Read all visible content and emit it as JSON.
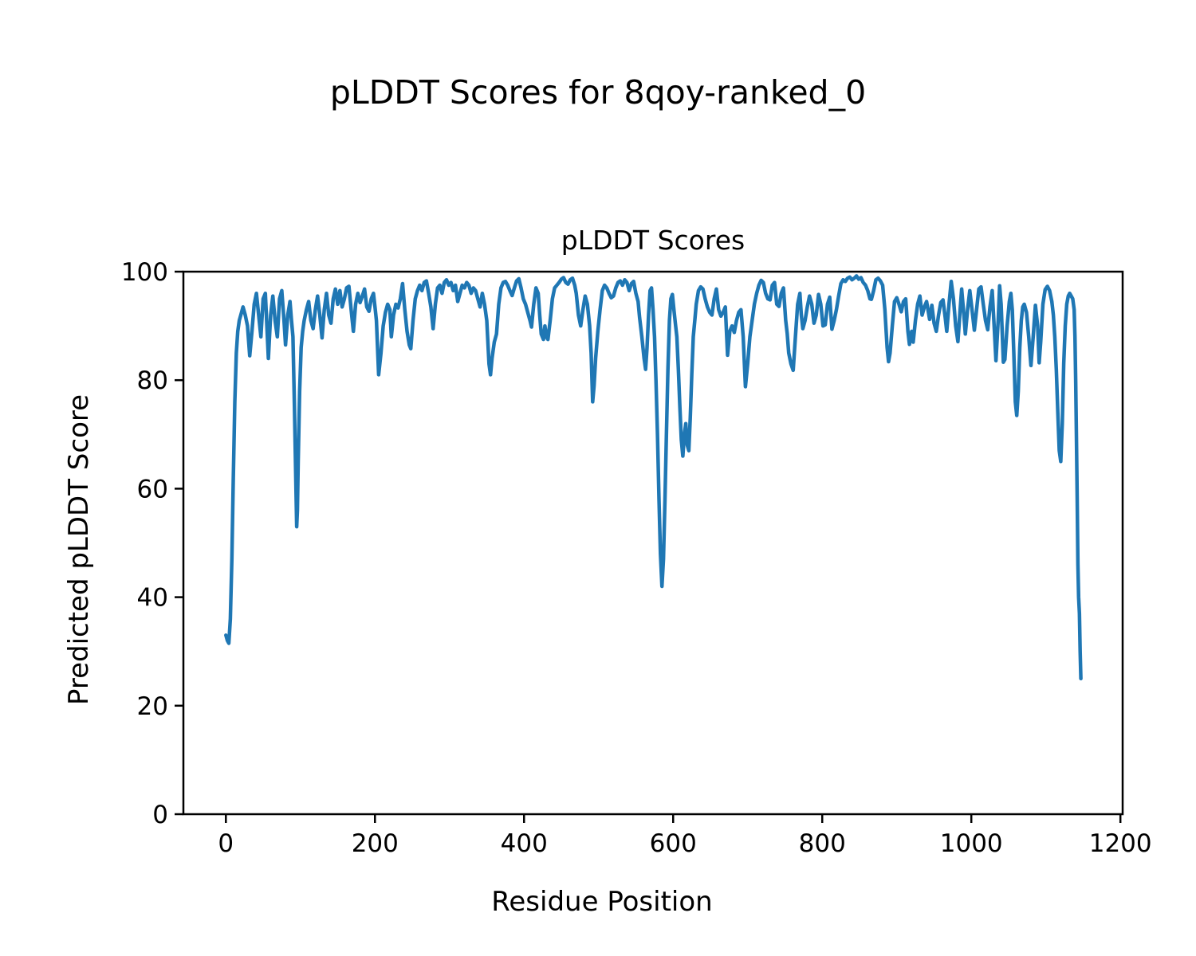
{
  "figure": {
    "suptitle": "pLDDT Scores for 8qoy-ranked_0"
  },
  "chart_data": {
    "type": "line",
    "title": "pLDDT Scores",
    "xlabel": "Residue Position",
    "ylabel": "Predicted pLDDT Score",
    "xlim": [
      -57,
      1203
    ],
    "ylim": [
      0,
      100
    ],
    "xticks": [
      0,
      200,
      400,
      600,
      800,
      1000,
      1200
    ],
    "yticks": [
      0,
      20,
      40,
      60,
      80,
      100
    ],
    "grid": false,
    "legend": "none",
    "line_color": "#1f77b4",
    "axis_color": "#000000",
    "series": [
      {
        "name": "pLDDT",
        "x": [
          0,
          2,
          4,
          6,
          8,
          10,
          12,
          14,
          16,
          18,
          20,
          23,
          26,
          29,
          32,
          35,
          38,
          41,
          44,
          47,
          50,
          53,
          55,
          57,
          60,
          63,
          66,
          69,
          72,
          75,
          78,
          80,
          83,
          86,
          88,
          90,
          92,
          94,
          95,
          96,
          97,
          99,
          101,
          103,
          105,
          108,
          111,
          114,
          117,
          120,
          123,
          126,
          129,
          132,
          135,
          138,
          141,
          144,
          147,
          150,
          153,
          156,
          159,
          162,
          165,
          168,
          171,
          174,
          177,
          180,
          183,
          186,
          189,
          192,
          195,
          198,
          200,
          202,
          205,
          208,
          211,
          214,
          217,
          220,
          222,
          225,
          228,
          231,
          234,
          237,
          240,
          243,
          246,
          248,
          251,
          254,
          257,
          260,
          263,
          266,
          269,
          272,
          275,
          278,
          281,
          284,
          287,
          290,
          293,
          296,
          299,
          302,
          305,
          308,
          311,
          314,
          317,
          320,
          323,
          326,
          329,
          332,
          335,
          338,
          341,
          344,
          347,
          350,
          353,
          355,
          357,
          360,
          363,
          366,
          369,
          372,
          375,
          378,
          381,
          384,
          387,
          390,
          393,
          396,
          399,
          402,
          405,
          408,
          410,
          413,
          416,
          419,
          421,
          423,
          426,
          428,
          430,
          432,
          435,
          438,
          441,
          444,
          447,
          450,
          453,
          456,
          459,
          462,
          465,
          468,
          470,
          473,
          476,
          479,
          482,
          485,
          488,
          490,
          492,
          494,
          496,
          499,
          502,
          505,
          508,
          511,
          514,
          517,
          520,
          523,
          526,
          529,
          532,
          535,
          538,
          541,
          544,
          547,
          550,
          553,
          555,
          558,
          561,
          563,
          565,
          567,
          569,
          571,
          573,
          575,
          577,
          579,
          581,
          583,
          585,
          587,
          589,
          591,
          593,
          595,
          597,
          599,
          601,
          603,
          605,
          607,
          609,
          611,
          613,
          615,
          617,
          619,
          621,
          623,
          625,
          627,
          629,
          631,
          634,
          637,
          640,
          643,
          646,
          649,
          652,
          655,
          658,
          661,
          664,
          667,
          670,
          673,
          676,
          679,
          682,
          685,
          688,
          691,
          694,
          697,
          700,
          703,
          706,
          709,
          712,
          715,
          718,
          721,
          724,
          727,
          730,
          733,
          736,
          739,
          742,
          745,
          748,
          751,
          753,
          755,
          758,
          761,
          764,
          767,
          770,
          772,
          774,
          777,
          780,
          783,
          786,
          789,
          792,
          795,
          798,
          801,
          804,
          807,
          810,
          813,
          816,
          819,
          822,
          825,
          828,
          831,
          834,
          837,
          840,
          843,
          846,
          849,
          852,
          855,
          858,
          861,
          864,
          866,
          869,
          872,
          875,
          878,
          881,
          884,
          887,
          889,
          891,
          894,
          897,
          900,
          903,
          906,
          909,
          912,
          915,
          917,
          920,
          922,
          925,
          928,
          931,
          934,
          937,
          940,
          944,
          947,
          950,
          953,
          956,
          959,
          962,
          965,
          967,
          970,
          973,
          976,
          979,
          982,
          985,
          987,
          990,
          992,
          995,
          998,
          1001,
          1004,
          1007,
          1010,
          1013,
          1016,
          1019,
          1022,
          1025,
          1028,
          1031,
          1033,
          1036,
          1038,
          1040,
          1043,
          1045,
          1048,
          1051,
          1053,
          1055,
          1057,
          1059,
          1061,
          1063,
          1065,
          1067,
          1069,
          1071,
          1074,
          1077,
          1080,
          1083,
          1086,
          1089,
          1091,
          1093,
          1096,
          1099,
          1102,
          1105,
          1108,
          1110,
          1112,
          1114,
          1116,
          1118,
          1120,
          1122,
          1124,
          1126,
          1128,
          1130,
          1132,
          1134,
          1136,
          1138,
          1139,
          1140,
          1141,
          1142,
          1143,
          1144,
          1145,
          1146,
          1147
        ],
        "y": [
          33,
          32,
          31.5,
          36,
          47,
          62,
          76,
          85,
          89,
          91,
          92,
          93.5,
          92,
          90,
          84.5,
          89,
          94,
          96,
          92,
          88,
          95,
          96,
          90,
          84,
          92,
          95.5,
          91,
          88,
          95,
          96.5,
          91,
          86.5,
          92,
          94.5,
          91,
          88,
          75,
          60,
          53,
          56,
          65,
          78,
          86,
          89,
          91,
          93,
          94.5,
          91,
          89.5,
          93,
          95.5,
          92,
          87.8,
          93,
          96,
          92,
          90.5,
          95,
          96.8,
          94,
          96.5,
          93.5,
          95,
          97,
          97.3,
          93,
          89,
          94,
          96,
          94.3,
          95.5,
          96.8,
          93.5,
          92.7,
          95,
          96,
          93.5,
          91,
          81,
          85,
          90,
          92.5,
          94,
          93,
          88,
          92,
          94,
          93.3,
          95,
          97.8,
          93,
          89,
          86.5,
          85.8,
          91,
          95,
          96.5,
          97.5,
          96.5,
          98,
          98.3,
          96,
          93.5,
          89.5,
          94,
          97,
          97.5,
          96,
          98,
          98.5,
          97.5,
          98,
          96.5,
          97.5,
          94.5,
          96,
          97.5,
          97,
          98,
          97.5,
          96,
          97,
          96.5,
          95,
          93.5,
          96,
          94,
          91,
          83,
          81,
          84,
          87,
          88.5,
          94,
          97,
          98,
          98.2,
          97.5,
          96.5,
          95.6,
          97,
          98.3,
          98.7,
          97,
          95,
          94,
          92.5,
          91,
          89.8,
          94,
          97,
          96,
          92,
          88.5,
          87.5,
          90,
          88,
          87.5,
          91,
          95,
          97,
          97.5,
          98,
          98.6,
          98.9,
          98,
          97.7,
          98.5,
          98.8,
          97.5,
          96,
          92,
          90,
          93,
          95.5,
          94,
          90,
          85,
          76,
          79,
          84,
          89,
          93,
          96.5,
          97.5,
          97,
          96,
          95.2,
          95.5,
          97,
          98,
          98.3,
          97.5,
          98.5,
          98,
          96.5,
          97.8,
          98.2,
          96,
          94.5,
          91.5,
          88,
          84,
          82,
          86,
          92,
          96.5,
          97,
          93,
          88,
          80,
          70,
          58,
          48,
          42,
          47,
          58,
          70,
          82,
          91,
          95,
          95.8,
          93,
          90.5,
          88,
          82,
          75,
          69,
          66,
          70,
          72,
          68,
          67,
          73,
          81,
          88,
          91,
          94,
          96.5,
          97.2,
          96.8,
          95,
          93.5,
          92.5,
          92,
          95,
          96.8,
          93,
          91.8,
          92.5,
          93.5,
          84.6,
          89,
          90,
          88.8,
          91,
          92.5,
          93,
          88,
          78.8,
          83,
          88,
          91,
          94,
          96,
          97.5,
          98.4,
          98,
          96,
          95,
          94.8,
          97.5,
          98,
          94,
          93.6,
          96,
          97,
          91,
          88.6,
          85,
          83,
          81.8,
          88,
          94,
          96,
          92,
          89.5,
          91,
          93.5,
          95.5,
          94,
          90.5,
          92,
          95.8,
          94,
          90,
          90.2,
          94,
          95.3,
          89.4,
          91,
          93,
          95.5,
          97.8,
          98.5,
          98.2,
          98.8,
          99,
          98.5,
          98.8,
          99.2,
          98.6,
          98.9,
          98,
          97.5,
          96.5,
          95,
          94.9,
          96.5,
          98.5,
          98.8,
          98.3,
          97.5,
          93,
          86,
          83.4,
          85,
          90,
          94.5,
          95.2,
          94,
          92.6,
          94.5,
          95,
          89,
          86.6,
          89,
          87,
          91,
          94,
          95.5,
          92,
          93.5,
          94.5,
          91.2,
          93.8,
          90.5,
          89,
          92,
          94.3,
          94.8,
          91.5,
          89,
          94,
          98.2,
          95,
          90,
          87.1,
          93,
          96.8,
          92,
          88.5,
          93,
          96.5,
          93,
          89.2,
          93,
          96.8,
          97.2,
          94,
          91,
          89.3,
          93.5,
          96.5,
          89,
          83.6,
          91,
          97.4,
          94,
          83.3,
          83.8,
          90,
          94.5,
          96,
          93,
          85,
          76,
          73.5,
          78,
          86,
          91,
          93.5,
          94,
          92.5,
          88,
          82.7,
          88,
          93.8,
          90,
          83.2,
          87,
          94,
          96.7,
          97.3,
          96.5,
          94.5,
          92,
          88,
          82,
          74,
          67,
          65,
          72,
          83,
          90,
          94,
          95.5,
          96,
          95.5,
          95,
          93,
          88,
          80,
          70,
          58,
          46,
          40,
          37,
          30,
          25
        ]
      }
    ]
  }
}
